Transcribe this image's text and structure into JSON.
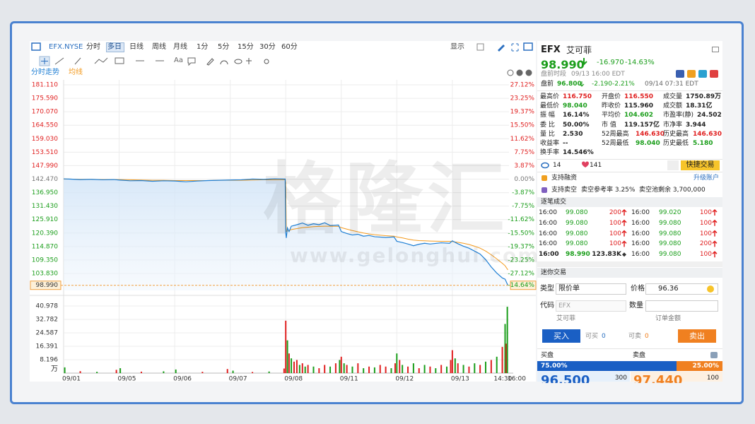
{
  "toolbar": {
    "symbol": "EFX.NYSE",
    "periods": [
      "分时",
      "多日",
      "日线",
      "周线",
      "月线",
      "1分",
      "5分",
      "15分",
      "30分",
      "60分"
    ],
    "active_period": 1,
    "display": "显示",
    "text_tool": "Aa"
  },
  "watermark": {
    "brand": "格隆汇",
    "url": "www.gelonghui.com"
  },
  "chart_data": [
    {
      "type": "line",
      "x": [
        0,
        0.1,
        0.3,
        0.5,
        0.7,
        0.9,
        1.0,
        1.2,
        1.4,
        1.6,
        1.8,
        2.0,
        2.2,
        2.4,
        2.6,
        2.8,
        3.0,
        3.2,
        3.4,
        3.6,
        3.8,
        3.99,
        4.0,
        4.01,
        4.03,
        4.06,
        4.1,
        4.2,
        4.3,
        4.4,
        4.5,
        4.6,
        4.7,
        4.8,
        4.95,
        5.0,
        5.1,
        5.2,
        5.3,
        5.4,
        5.5,
        5.6,
        5.8,
        5.95,
        6.0,
        6.1,
        6.2,
        6.3,
        6.4,
        6.5,
        6.6,
        6.8,
        6.95,
        7.0,
        7.1,
        7.2,
        7.3,
        7.4,
        7.5,
        7.6,
        7.7,
        7.8,
        7.9,
        7.95,
        8.0
      ],
      "series": [
        {
          "name": "分时走势",
          "color": "#1f7fd4",
          "values": [
            142.6,
            142.5,
            142.3,
            142.4,
            142.2,
            142.3,
            142.1,
            141.8,
            141.9,
            141.6,
            141.8,
            141.7,
            141.4,
            141.7,
            141.9,
            142.0,
            142.1,
            142.2,
            142.5,
            142.4,
            142.6,
            142.5,
            120.5,
            118.4,
            122.5,
            121.0,
            123.2,
            123.8,
            124.5,
            123.6,
            124.2,
            123.8,
            124.6,
            123.5,
            123.7,
            121.0,
            120.2,
            119.6,
            119.9,
            119.1,
            119.4,
            118.9,
            118.6,
            118.8,
            117.0,
            116.5,
            115.9,
            115.2,
            115.8,
            116.2,
            115.9,
            116.4,
            116.2,
            117.2,
            116.0,
            115.0,
            114.2,
            113.0,
            111.8,
            109.5,
            106.5,
            104.0,
            102.0,
            101.5,
            98.99
          ]
        },
        {
          "name": "均线",
          "color": "#f39a1e",
          "values": [
            142.5,
            142.5,
            142.4,
            142.4,
            142.3,
            142.3,
            142.3,
            142.2,
            142.1,
            142.0,
            142.0,
            141.9,
            141.9,
            141.9,
            141.9,
            142.0,
            142.0,
            142.0,
            142.1,
            142.2,
            142.2,
            142.3,
            141.0,
            121.0,
            121.2,
            121.4,
            121.8,
            122.2,
            122.6,
            122.8,
            123.0,
            123.1,
            123.2,
            123.2,
            123.1,
            122.6,
            122.0,
            121.4,
            120.9,
            120.4,
            120.0,
            119.7,
            119.3,
            119.1,
            118.8,
            118.4,
            117.9,
            117.5,
            117.3,
            117.2,
            117.1,
            117.0,
            117.0,
            116.9,
            116.6,
            116.2,
            115.7,
            115.0,
            114.2,
            113.0,
            111.5,
            109.8,
            108.0,
            107.0,
            105.3
          ]
        }
      ],
      "xlim": [
        0,
        8.02
      ],
      "xticks": [
        {
          "value": 0,
          "label": "09/01"
        },
        {
          "value": 1,
          "label": "09/05"
        },
        {
          "value": 2,
          "label": "09/06"
        },
        {
          "value": 3,
          "label": "09/07"
        },
        {
          "value": 4,
          "label": "09/08"
        },
        {
          "value": 5,
          "label": "09/11"
        },
        {
          "value": 6,
          "label": "09/12"
        },
        {
          "value": 7,
          "label": "09/13"
        },
        {
          "value": 7.77,
          "label": "14:30"
        },
        {
          "value": 8.02,
          "label": "16:00"
        }
      ],
      "ylim": [
        96.88,
        183.14
      ],
      "yticks": [
        {
          "value": 181.11,
          "label": "181.110"
        },
        {
          "value": 175.59,
          "label": "175.590"
        },
        {
          "value": 170.07,
          "label": "170.070"
        },
        {
          "value": 164.55,
          "label": "164.550"
        },
        {
          "value": 159.03,
          "label": "159.030"
        },
        {
          "value": 153.51,
          "label": "153.510"
        },
        {
          "value": 147.99,
          "label": "147.990"
        },
        {
          "value": 142.47,
          "label": "142.470"
        },
        {
          "value": 136.95,
          "label": "136.950"
        },
        {
          "value": 131.43,
          "label": "131.430"
        },
        {
          "value": 125.91,
          "label": "125.910"
        },
        {
          "value": 120.39,
          "label": "120.390"
        },
        {
          "value": 114.87,
          "label": "114.870"
        },
        {
          "value": 109.35,
          "label": "109.350"
        },
        {
          "value": 103.83,
          "label": "103.830"
        }
      ],
      "y2lim": [
        -32.0,
        28.55
      ],
      "y2ticks": [
        {
          "value": 27.12,
          "label": "27.12%"
        },
        {
          "value": 23.25,
          "label": "23.25%"
        },
        {
          "value": 19.37,
          "label": "19.37%"
        },
        {
          "value": 15.5,
          "label": "15.50%"
        },
        {
          "value": 11.62,
          "label": "11.62%"
        },
        {
          "value": 7.75,
          "label": "7.75%"
        },
        {
          "value": 3.87,
          "label": "3.87%"
        },
        {
          "value": 0,
          "label": "0.00%"
        },
        {
          "value": -3.87,
          "label": "-3.87%"
        },
        {
          "value": -7.75,
          "label": "-7.75%"
        },
        {
          "value": -11.62,
          "label": "-11.62%"
        },
        {
          "value": -15.5,
          "label": "-15.50%"
        },
        {
          "value": -19.37,
          "label": "-19.37%"
        },
        {
          "value": -23.25,
          "label": "-23.25%"
        },
        {
          "value": -27.12,
          "label": "-27.12%"
        }
      ],
      "grid": true,
      "up_color": "#e02020",
      "down_color": "#1b9e1b",
      "last": {
        "value": 98.99,
        "label": "98.990"
      },
      "last_change": {
        "value": -14.64,
        "label": "-14.64%"
      }
    },
    {
      "type": "bar",
      "x": [
        0.02,
        0.3,
        0.6,
        0.95,
        1.02,
        1.4,
        1.8,
        2.02,
        2.5,
        2.95,
        3.05,
        3.4,
        3.7,
        3.97,
        4.0,
        4.03,
        4.06,
        4.1,
        4.15,
        4.2,
        4.25,
        4.3,
        4.35,
        4.4,
        4.5,
        4.6,
        4.7,
        4.8,
        4.9,
        4.97,
        5.0,
        5.05,
        5.1,
        5.2,
        5.3,
        5.4,
        5.5,
        5.6,
        5.7,
        5.8,
        5.9,
        5.97,
        6.0,
        6.05,
        6.1,
        6.2,
        6.3,
        6.4,
        6.5,
        6.6,
        6.7,
        6.8,
        6.9,
        6.97,
        7.0,
        7.05,
        7.1,
        7.2,
        7.3,
        7.4,
        7.5,
        7.6,
        7.7,
        7.8,
        7.9,
        7.95,
        7.97,
        7.99
      ],
      "values": [
        3.5,
        1.2,
        0.8,
        2.0,
        3.0,
        0.9,
        1.1,
        2.2,
        0.8,
        2.5,
        1.5,
        0.7,
        1.0,
        2.8,
        32,
        20,
        12,
        9,
        7,
        8,
        5,
        6,
        4,
        5,
        4,
        3,
        5,
        4,
        6,
        8,
        10,
        6,
        5,
        4,
        6,
        3,
        4,
        3.5,
        5,
        4,
        3,
        6,
        12,
        8,
        5,
        4,
        6,
        3,
        5,
        4,
        3,
        5,
        4,
        8,
        14,
        9,
        6,
        5,
        4,
        6,
        5,
        7,
        8,
        10,
        16,
        30,
        18,
        40.5
      ],
      "colors": [
        "#1b9e1b",
        "#e02020",
        "#1b9e1b",
        "#e02020",
        "#1b9e1b",
        "#e02020",
        "#1b9e1b",
        "#1b9e1b",
        "#e02020",
        "#e02020",
        "#1b9e1b",
        "#e02020",
        "#1b9e1b",
        "#e02020",
        "#e02020",
        "#1b9e1b",
        "#e02020",
        "#1b9e1b",
        "#e02020",
        "#e02020",
        "#1b9e1b",
        "#e02020",
        "#1b9e1b",
        "#e02020",
        "#1b9e1b",
        "#e02020",
        "#e02020",
        "#1b9e1b",
        "#e02020",
        "#1b9e1b",
        "#e02020",
        "#1b9e1b",
        "#e02020",
        "#1b9e1b",
        "#e02020",
        "#1b9e1b",
        "#e02020",
        "#1b9e1b",
        "#e02020",
        "#e02020",
        "#1b9e1b",
        "#e02020",
        "#1b9e1b",
        "#e02020",
        "#1b9e1b",
        "#e02020",
        "#1b9e1b",
        "#e02020",
        "#1b9e1b",
        "#e02020",
        "#1b9e1b",
        "#e02020",
        "#1b9e1b",
        "#e02020",
        "#e02020",
        "#1b9e1b",
        "#e02020",
        "#1b9e1b",
        "#e02020",
        "#1b9e1b",
        "#e02020",
        "#1b9e1b",
        "#e02020",
        "#1b9e1b",
        "#e02020",
        "#1b9e1b",
        "#e02020",
        "#1b9e1b"
      ],
      "xlim": [
        0,
        8.02
      ],
      "ylim": [
        0,
        42.7
      ],
      "yticks": [
        40.978,
        32.782,
        24.587,
        16.391,
        8.196
      ],
      "unit": "万"
    }
  ],
  "quote": {
    "symbol": "EFX",
    "name": "艾可菲",
    "price": "98.990",
    "change": "-16.970",
    "change_pct": "-14.63%",
    "session_label": "盘前时段",
    "session_time": "09/13 16:00 EDT",
    "pre_label": "盘前",
    "pre_price": "96.800",
    "pre_change": "-2.190",
    "pre_change_pct": "-2.21%",
    "pre_time": "09/14 07:31 EDT",
    "stats": [
      [
        {
          "label": "最高价",
          "value": "116.750",
          "color": "#e02020"
        },
        {
          "label": "开盘价",
          "value": "116.550",
          "color": "#e02020"
        },
        {
          "label": "成交量",
          "value": "1750.89万"
        }
      ],
      [
        {
          "label": "最低价",
          "value": "98.040",
          "color": "#1b9e1b"
        },
        {
          "label": "昨收价",
          "value": "115.960"
        },
        {
          "label": "成交额",
          "value": "18.31亿"
        }
      ],
      [
        {
          "label": "振 幅",
          "value": "16.14%"
        },
        {
          "label": "平均价",
          "value": "104.602",
          "color": "#1b9e1b"
        },
        {
          "label": "市盈率(静)",
          "value": "24.502"
        }
      ],
      [
        {
          "label": "委 比",
          "value": "50.00%"
        },
        {
          "label": "市 值",
          "value": "119.157亿"
        },
        {
          "label": "市净率",
          "value": "3.944"
        }
      ],
      [
        {
          "label": "量 比",
          "value": "2.530"
        },
        {
          "label": "52周最高",
          "value": "146.630",
          "color": "#e02020"
        },
        {
          "label": "历史最高",
          "value": "146.630",
          "color": "#e02020"
        }
      ],
      [
        {
          "label": "收益率",
          "value": "--"
        },
        {
          "label": "52周最低",
          "value": "98.040",
          "color": "#1b9e1b"
        },
        {
          "label": "历史最低",
          "value": "5.180",
          "color": "#1b9e1b"
        }
      ],
      [
        {
          "label": "换手率",
          "value": "14.546%"
        }
      ]
    ],
    "views": "14",
    "likes": "141",
    "quick_trade": "快捷交易",
    "margin": "支持融资",
    "upgrade": "升级账户",
    "short": "支持卖空",
    "short_rate": "卖空参考率 3.25%",
    "short_pool": "卖空池剩余 3,700,000",
    "trades_title": "逐笔成交",
    "trades": [
      [
        {
          "time": "16:00",
          "price": "99.080",
          "volume": "200",
          "side": "buy"
        },
        {
          "time": "16:00",
          "price": "99.020",
          "volume": "100",
          "side": "buy"
        }
      ],
      [
        {
          "time": "16:00",
          "price": "99.080",
          "volume": "100",
          "side": "buy"
        },
        {
          "time": "16:00",
          "price": "99.080",
          "volume": "100",
          "side": "buy"
        }
      ],
      [
        {
          "time": "16:00",
          "price": "99.080",
          "volume": "100",
          "side": "buy"
        },
        {
          "time": "16:00",
          "price": "99.080",
          "volume": "100",
          "side": "buy"
        }
      ],
      [
        {
          "time": "16:00",
          "price": "99.080",
          "volume": "100",
          "side": "buy"
        },
        {
          "time": "16:00",
          "price": "99.080",
          "volume": "200",
          "side": "buy"
        }
      ],
      [
        {
          "time": "16:00",
          "price": "98.990",
          "volume": "123.83K",
          "side": "neutral"
        },
        {
          "time": "16:00",
          "price": "99.080",
          "volume": "100",
          "side": "buy"
        }
      ]
    ]
  },
  "mini_trade": {
    "title": "迷你交易",
    "type_label": "类型",
    "order_type": "限价单",
    "price_label": "价格",
    "price": "96.36",
    "code_label": "代码",
    "code": "EFX",
    "qty_label": "数量",
    "name": "艾可菲",
    "amount": "订单金额",
    "buy": "买入",
    "can_buy_label": "可买",
    "can_buy": "0",
    "can_sell_label": "可卖",
    "can_sell": "0",
    "sell": "卖出"
  },
  "order_book": {
    "bid_label": "买盘",
    "ask_label": "卖盘",
    "bid_ratio": {
      "value": 75,
      "label": "75.00%"
    },
    "ask_ratio": {
      "value": 25,
      "label": "25.00%"
    },
    "bid_price": "96.500",
    "bid_size": "300",
    "ask_price": "97.440",
    "ask_size": "100"
  }
}
